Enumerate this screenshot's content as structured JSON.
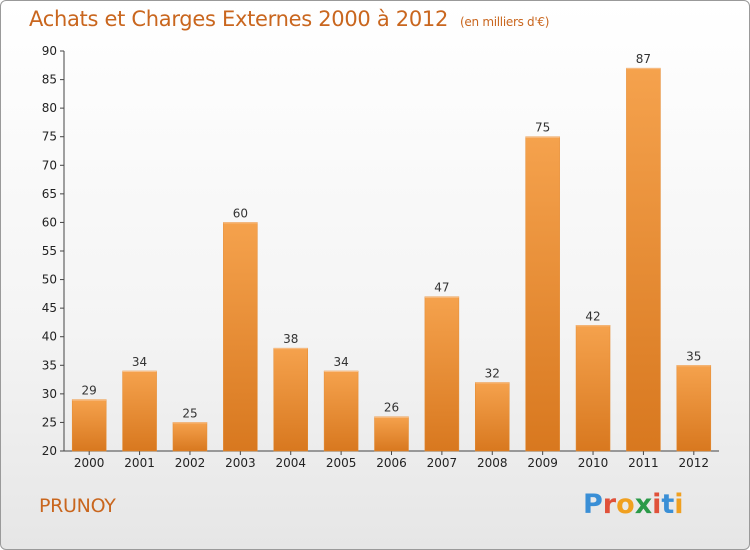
{
  "title": "Achats et Charges Externes 2000 à 2012",
  "subtitle": "(en milliers d'€)",
  "location": "PRUNOY",
  "logo": {
    "letters": [
      "P",
      "r",
      "o",
      "x",
      "i",
      "t",
      "i"
    ],
    "colors": [
      "#3a8fd6",
      "#e0513a",
      "#f0a020",
      "#2a9a48",
      "#e0513a",
      "#3a8fd6",
      "#f0a020"
    ]
  },
  "colors": {
    "accent": "#c9661e",
    "bar_light": "#f5a24d",
    "bar_dark": "#d8781f"
  },
  "chart_data": {
    "type": "bar",
    "title": "Achats et Charges Externes 2000 à 2012",
    "subtitle": "(en milliers d'€)",
    "xlabel": "",
    "ylabel": "",
    "categories": [
      "2000",
      "2001",
      "2002",
      "2003",
      "2004",
      "2005",
      "2006",
      "2007",
      "2008",
      "2009",
      "2010",
      "2011",
      "2012"
    ],
    "values": [
      29,
      34,
      25,
      60,
      38,
      34,
      26,
      47,
      32,
      75,
      42,
      87,
      35
    ],
    "ylim": [
      20,
      90
    ],
    "yticks": [
      20,
      25,
      30,
      35,
      40,
      45,
      50,
      55,
      60,
      65,
      70,
      75,
      80,
      85,
      90
    ],
    "grid": false,
    "data_labels": true
  }
}
